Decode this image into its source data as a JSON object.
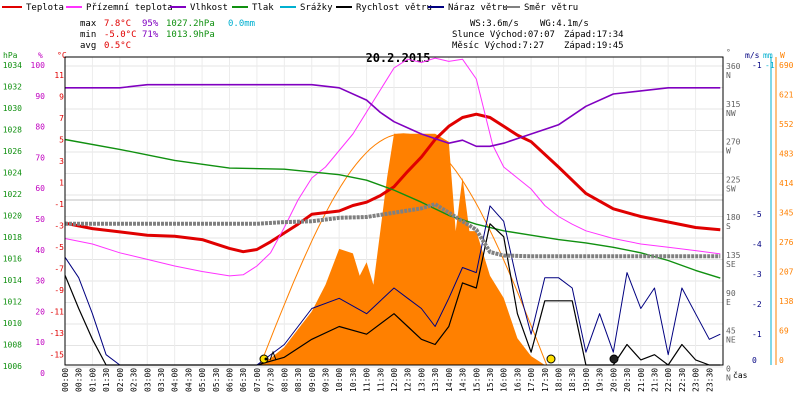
{
  "legend": [
    {
      "label": "Teplota",
      "color": "#e00000"
    },
    {
      "label": "Přízemní teplota",
      "color": "#ff33ff"
    },
    {
      "label": "Vlhkost",
      "color": "#8000c0"
    },
    {
      "label": "Tlak",
      "color": "#109010"
    },
    {
      "label": "Srážky",
      "color": "#00b0d0"
    },
    {
      "label": "Rychlost větru",
      "color": "#000000"
    },
    {
      "label": "Náraz větru",
      "color": "#000080"
    },
    {
      "label": "Směr větru",
      "color": "#808080"
    }
  ],
  "stats": {
    "max_label": "max",
    "max_temp": "7.8°C",
    "max_hum": "95%",
    "max_press": "1027.2hPa",
    "max_rain": "0.0mm",
    "min_label": "min",
    "min_temp": "-5.0°C",
    "min_hum": "71%",
    "min_press": "1013.9hPa",
    "avg_label": "avg",
    "avg_temp": "0.5°C",
    "ws": "WS:3.6m/s",
    "wg": "WG:4.1m/s",
    "sun": "Slunce Východ:07:07",
    "sun_set": "Západ:17:34",
    "moon": "Měsíc Východ:7:27",
    "moon_set": "Západ:19:45"
  },
  "chart_data": {
    "type": "line",
    "title": "20.2.2015",
    "x_unit_label": "čas",
    "x_ticks": [
      "00:00",
      "00:30",
      "01:00",
      "01:30",
      "02:00",
      "02:30",
      "03:00",
      "03:30",
      "04:00",
      "04:30",
      "05:00",
      "05:30",
      "06:00",
      "06:30",
      "07:00",
      "07:30",
      "08:00",
      "08:30",
      "09:00",
      "09:30",
      "10:00",
      "10:30",
      "11:00",
      "11:30",
      "12:00",
      "12:30",
      "13:00",
      "13:30",
      "14:00",
      "14:30",
      "15:00",
      "15:30",
      "16:00",
      "16:30",
      "17:00",
      "17:30",
      "18:00",
      "18:30",
      "19:00",
      "19:30",
      "20:00",
      "20:30",
      "21:00",
      "21:30",
      "22:00",
      "22:30",
      "23:00",
      "23:30"
    ],
    "axes": {
      "pressure": {
        "unit": "hPa",
        "range": [
          1006,
          1034
        ],
        "ticks": [
          "1034",
          "1032",
          "1030",
          "1028",
          "1026",
          "1024",
          "1022",
          "1020",
          "1018",
          "1016",
          "1014",
          "1012",
          "1010",
          "1008",
          "1006"
        ]
      },
      "humidity": {
        "unit": "%",
        "range": [
          0,
          100
        ],
        "ticks": [
          "100",
          "90",
          "80",
          "70",
          "60",
          "50",
          "40",
          "30",
          "20",
          "10",
          "0"
        ]
      },
      "temperature": {
        "unit": "°C",
        "range": [
          -15,
          13
        ],
        "ticks": [
          "11",
          "9",
          "7",
          "5",
          "3",
          "1",
          "-1",
          "-3",
          "-5",
          "-7",
          "-9",
          "-11",
          "-13",
          "-15"
        ]
      },
      "direction": {
        "unit": "°",
        "ticks": [
          "360",
          "315",
          "270",
          "225",
          "180",
          "135",
          "90",
          "45",
          "0"
        ],
        "labels": [
          "N",
          "NW",
          "W",
          "SW",
          "S",
          "SE",
          "E",
          "NE",
          "N"
        ]
      },
      "wind": {
        "unit": "m/s",
        "range": [
          0,
          12
        ],
        "ticks": [
          "-1",
          "-5",
          "-4",
          "-3",
          "-2",
          "-1",
          "0"
        ]
      },
      "rain": {
        "unit": "mm",
        "ticks": [
          "-1"
        ]
      },
      "solar": {
        "unit": "W",
        "range": [
          0,
          690
        ],
        "ticks": [
          "690",
          "621",
          "552",
          "483",
          "414",
          "345",
          "276",
          "207",
          "138",
          "69",
          "0"
        ]
      }
    },
    "series": [
      {
        "name": "Teplota",
        "color": "#e00000",
        "axis": "temperature",
        "x": [
          0,
          1,
          2,
          3,
          4,
          5,
          6,
          6.5,
          7,
          7.5,
          8,
          8.5,
          9,
          10,
          10.5,
          11,
          11.5,
          12,
          12.5,
          13,
          13.5,
          14,
          14.5,
          15,
          15.5,
          16,
          16.5,
          17,
          18,
          19,
          20,
          21,
          22,
          23,
          23.9
        ],
        "y": [
          -2.1,
          -2.6,
          -2.9,
          -3.2,
          -3.3,
          -3.6,
          -4.4,
          -4.7,
          -4.5,
          -3.8,
          -3.0,
          -2.2,
          -1.3,
          -1.0,
          -0.5,
          -0.2,
          0.4,
          1.2,
          2.6,
          3.9,
          5.5,
          6.7,
          7.5,
          7.8,
          7.5,
          6.7,
          5.9,
          5.3,
          3.0,
          0.6,
          -0.8,
          -1.5,
          -2.0,
          -2.5,
          -2.7
        ]
      },
      {
        "name": "Přízemní teplota",
        "color": "#ff33ff",
        "axis": "temperature",
        "x": [
          0,
          1,
          2,
          3,
          4,
          5,
          6,
          6.5,
          7,
          7.5,
          8,
          8.5,
          9,
          9.5,
          10,
          10.5,
          11,
          11.5,
          12,
          12.5,
          13,
          13.5,
          14,
          14.5,
          15,
          15.3,
          15.6,
          16,
          16.5,
          17,
          17.5,
          18,
          18.5,
          19,
          20,
          21,
          22,
          23,
          23.9
        ],
        "y": [
          -3.5,
          -4.0,
          -4.8,
          -5.4,
          -6.0,
          -6.5,
          -6.9,
          -6.8,
          -6.0,
          -4.8,
          -2.5,
          0.0,
          2.0,
          3.0,
          4.5,
          6.0,
          8.0,
          10.0,
          12.0,
          12.8,
          12.5,
          12.9,
          12.6,
          12.8,
          11.0,
          8.0,
          5.0,
          3.0,
          2.0,
          1.0,
          -0.5,
          -1.5,
          -2.2,
          -2.8,
          -3.5,
          -4.0,
          -4.3,
          -4.6,
          -4.9
        ]
      },
      {
        "name": "Vlhkost",
        "color": "#8000c0",
        "axis": "humidity",
        "x": [
          0,
          2,
          3,
          4,
          6,
          8,
          9,
          10,
          11,
          11.5,
          12,
          13,
          14,
          14.5,
          15,
          15.5,
          16,
          17,
          18,
          19,
          20,
          22,
          23.9
        ],
        "y": [
          90,
          90,
          91,
          91,
          91,
          91,
          91,
          90,
          86,
          82,
          79,
          75,
          72,
          73,
          71,
          71,
          72,
          75,
          78,
          84,
          88,
          90,
          90
        ]
      },
      {
        "name": "Tlak",
        "color": "#109010",
        "axis": "pressure",
        "x": [
          0,
          2,
          4,
          6,
          8,
          10,
          11,
          12,
          13,
          14,
          15,
          16,
          17,
          18,
          19,
          20,
          21,
          22,
          23,
          23.9
        ],
        "y": [
          1026.5,
          1025.6,
          1024.6,
          1023.9,
          1023.8,
          1023.3,
          1022.8,
          1021.9,
          1020.8,
          1019.6,
          1018.8,
          1018.2,
          1017.8,
          1017.4,
          1017.1,
          1016.7,
          1016.2,
          1015.5,
          1014.6,
          1013.9
        ]
      },
      {
        "name": "Rychlost větru",
        "color": "#000000",
        "axis": "wind",
        "x": [
          0,
          0.5,
          1,
          1.5,
          2,
          7,
          8,
          9,
          10,
          11,
          12,
          12.5,
          13,
          13.5,
          14,
          14.5,
          15,
          15.5,
          16,
          16.5,
          17,
          17.5,
          18,
          18.5,
          19,
          19.5,
          20,
          20.5,
          21,
          21.5,
          22,
          22.5,
          23,
          23.5,
          23.9
        ],
        "y": [
          3.5,
          2.2,
          1.0,
          0.0,
          0.0,
          0.0,
          0.3,
          1.0,
          1.5,
          1.2,
          2.0,
          1.5,
          1.0,
          0.8,
          1.5,
          3.2,
          3.0,
          5.5,
          5.0,
          2.0,
          0.5,
          2.5,
          2.5,
          2.5,
          0.0,
          0.0,
          0.0,
          0.8,
          0.2,
          0.4,
          0.0,
          0.8,
          0.2,
          0.0,
          0.0
        ]
      },
      {
        "name": "Náraz větru",
        "color": "#000080",
        "axis": "wind",
        "x": [
          0,
          0.5,
          1,
          1.5,
          2,
          7,
          8,
          9,
          10,
          11,
          12,
          12.5,
          13,
          13.5,
          14,
          14.5,
          15,
          15.5,
          16,
          16.5,
          17,
          17.5,
          18,
          18.5,
          19,
          19.5,
          20,
          20.5,
          21,
          21.5,
          22,
          22.5,
          23,
          23.5,
          23.9
        ],
        "y": [
          4.2,
          3.4,
          2.0,
          0.4,
          0.0,
          0.0,
          0.8,
          2.2,
          2.6,
          2.0,
          3.0,
          2.6,
          2.2,
          1.5,
          2.6,
          3.8,
          3.6,
          6.2,
          5.6,
          3.2,
          1.2,
          3.4,
          3.4,
          3.0,
          0.5,
          2.0,
          0.5,
          3.6,
          2.2,
          3.0,
          0.4,
          3.0,
          2.0,
          1.0,
          1.2
        ]
      },
      {
        "name": "Směr větru",
        "color": "#808080",
        "axis": "direction",
        "x": [
          0,
          3,
          6,
          7,
          8,
          9,
          10,
          11,
          12,
          13,
          13.5,
          14,
          15,
          15.5,
          16,
          17,
          18,
          19,
          20,
          22,
          23.9
        ],
        "y": [
          165,
          165,
          165,
          165,
          167,
          168,
          172,
          173,
          178,
          183,
          188,
          178,
          158,
          132,
          128,
          127,
          127,
          127,
          127,
          127,
          127
        ]
      },
      {
        "name": "Srážky",
        "color": "#00b0d0",
        "axis": "rain",
        "x": [
          0,
          23.9
        ],
        "y": [
          0,
          0
        ]
      }
    ],
    "solar_theoretical": {
      "axis": "solar",
      "peak": 518,
      "sunrise": 7.12,
      "sunset": 17.57
    },
    "solar_measured": {
      "axis": "solar",
      "color": "#ff8000",
      "x": [
        7.1,
        7.5,
        8,
        8.5,
        9,
        9.5,
        10,
        10.5,
        10.75,
        11,
        11.25,
        11.5,
        11.75,
        12,
        12.5,
        13,
        13.5,
        14,
        14.25,
        14.5,
        14.75,
        15,
        15.5,
        16,
        16.5,
        17,
        17.5
      ],
      "y": [
        0,
        15,
        40,
        80,
        120,
        180,
        260,
        250,
        200,
        230,
        180,
        300,
        420,
        518,
        518,
        518,
        518,
        500,
        300,
        420,
        300,
        300,
        200,
        150,
        60,
        20,
        0
      ]
    }
  }
}
